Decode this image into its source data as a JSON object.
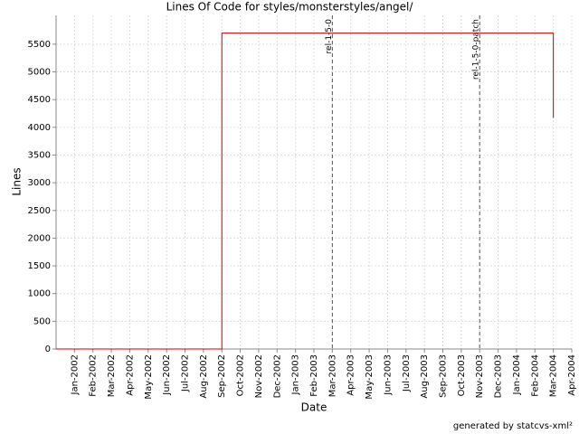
{
  "chart_data": {
    "type": "line",
    "title": "Lines Of Code for styles/monsterstyles/angel/",
    "x_label": "Date",
    "y_label": "Lines",
    "footer": "generated by statcvs-xml²",
    "x": [
      "2001-12",
      "2002-09",
      "2002-09",
      "2004-03",
      "2004-03"
    ],
    "series": [
      {
        "color": "#cc0000",
        "values": [
          0,
          0,
          5700,
          5700,
          4170
        ]
      }
    ],
    "xlim": [
      "2001-12",
      "2004-04"
    ],
    "xticks": [
      {
        "value": "2002-01",
        "label": "Jan-2002"
      },
      {
        "value": "2002-02",
        "label": "Feb-2002"
      },
      {
        "value": "2002-03",
        "label": "Mar-2002"
      },
      {
        "value": "2002-04",
        "label": "Apr-2002"
      },
      {
        "value": "2002-05",
        "label": "May-2002"
      },
      {
        "value": "2002-06",
        "label": "Jun-2002"
      },
      {
        "value": "2002-07",
        "label": "Jul-2002"
      },
      {
        "value": "2002-08",
        "label": "Aug-2002"
      },
      {
        "value": "2002-09",
        "label": "Sep-2002"
      },
      {
        "value": "2002-10",
        "label": "Oct-2002"
      },
      {
        "value": "2002-11",
        "label": "Nov-2002"
      },
      {
        "value": "2002-12",
        "label": "Dec-2002"
      },
      {
        "value": "2003-01",
        "label": "Jan-2003"
      },
      {
        "value": "2003-02",
        "label": "Feb-2003"
      },
      {
        "value": "2003-03",
        "label": "Mar-2003"
      },
      {
        "value": "2003-04",
        "label": "Apr-2003"
      },
      {
        "value": "2003-05",
        "label": "May-2003"
      },
      {
        "value": "2003-06",
        "label": "Jun-2003"
      },
      {
        "value": "2003-07",
        "label": "Jul-2003"
      },
      {
        "value": "2003-08",
        "label": "Aug-2003"
      },
      {
        "value": "2003-09",
        "label": "Sep-2003"
      },
      {
        "value": "2003-10",
        "label": "Oct-2003"
      },
      {
        "value": "2003-11",
        "label": "Nov-2003"
      },
      {
        "value": "2003-12",
        "label": "Dec-2003"
      },
      {
        "value": "2004-01",
        "label": "Jan-2004"
      },
      {
        "value": "2004-02",
        "label": "Feb-2004"
      },
      {
        "value": "2004-03",
        "label": "Mar-2004"
      },
      {
        "value": "2004-04",
        "label": "Apr-2004"
      }
    ],
    "ylim": [
      0,
      6020
    ],
    "yticks": [
      0,
      500,
      1000,
      1500,
      2000,
      2500,
      3000,
      3500,
      4000,
      4500,
      5000,
      5500
    ],
    "grid": true,
    "markers": [
      {
        "x": "2003-03",
        "label": "rel-1-5-0"
      },
      {
        "x": "2003-11",
        "label": "rel-1-5-0-patch"
      }
    ]
  }
}
